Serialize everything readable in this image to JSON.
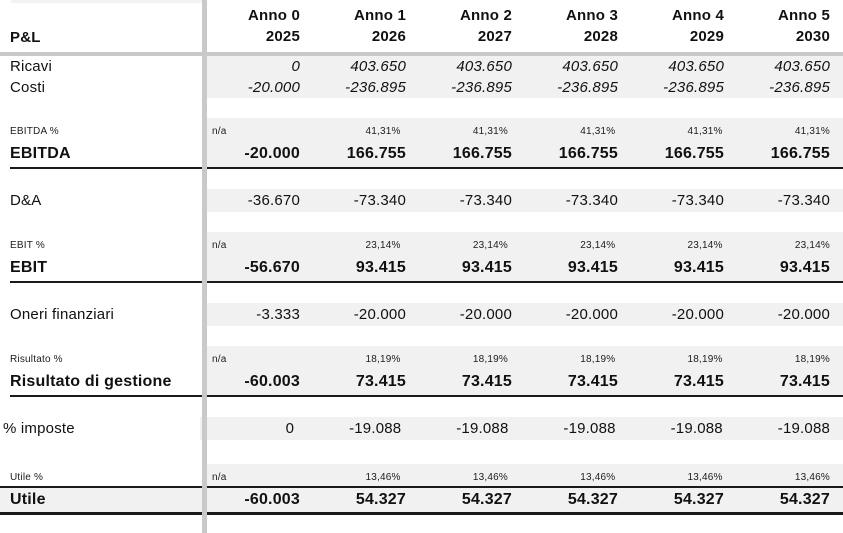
{
  "table": {
    "corner_label": "P&L",
    "columns": [
      {
        "anno": "Anno 0",
        "year": "2025"
      },
      {
        "anno": "Anno 1",
        "year": "2026"
      },
      {
        "anno": "Anno 2",
        "year": "2027"
      },
      {
        "anno": "Anno 3",
        "year": "2028"
      },
      {
        "anno": "Anno 4",
        "year": "2029"
      },
      {
        "anno": "Anno 5",
        "year": "2030"
      }
    ],
    "rows": [
      {
        "label": "Ricavi",
        "style": "italic",
        "values": [
          "0",
          "403.650",
          "403.650",
          "403.650",
          "403.650",
          "403.650"
        ]
      },
      {
        "label": "Costi",
        "style": "italic",
        "values": [
          "-20.000",
          "-236.895",
          "-236.895",
          "-236.895",
          "-236.895",
          "-236.895"
        ]
      },
      {
        "type": "spacer"
      },
      {
        "label": "EBITDA %",
        "style": "percent",
        "values": [
          "n/a",
          "41,31%",
          "41,31%",
          "41,31%",
          "41,31%",
          "41,31%"
        ]
      },
      {
        "label": "EBITDA",
        "style": "total",
        "rule": true,
        "values": [
          "-20.000",
          "166.755",
          "166.755",
          "166.755",
          "166.755",
          "166.755"
        ]
      },
      {
        "type": "spacer"
      },
      {
        "label": "D&A",
        "style": "normal",
        "values": [
          "-36.670",
          "-73.340",
          "-73.340",
          "-73.340",
          "-73.340",
          "-73.340"
        ]
      },
      {
        "type": "spacer"
      },
      {
        "label": "EBIT %",
        "style": "percent",
        "values": [
          "n/a",
          "23,14%",
          "23,14%",
          "23,14%",
          "23,14%",
          "23,14%"
        ]
      },
      {
        "label": "EBIT",
        "style": "total",
        "rule": true,
        "values": [
          "-56.670",
          "93.415",
          "93.415",
          "93.415",
          "93.415",
          "93.415"
        ]
      },
      {
        "type": "spacer"
      },
      {
        "label": "Oneri finanziari",
        "style": "normal",
        "values": [
          "-3.333",
          "-20.000",
          "-20.000",
          "-20.000",
          "-20.000",
          "-20.000"
        ]
      },
      {
        "type": "spacer"
      },
      {
        "label": "Risultato %",
        "style": "percent",
        "values": [
          "n/a",
          "18,19%",
          "18,19%",
          "18,19%",
          "18,19%",
          "18,19%"
        ]
      },
      {
        "label": "Risultato di gestione",
        "style": "total",
        "rule": true,
        "values": [
          "-60.003",
          "73.415",
          "73.415",
          "73.415",
          "73.415",
          "73.415"
        ]
      },
      {
        "type": "spacer"
      },
      {
        "label": "% imposte",
        "style": "normal shift-left",
        "values": [
          "0",
          "-19.088",
          "-19.088",
          "-19.088",
          "-19.088",
          "-19.088"
        ]
      },
      {
        "type": "spacer",
        "style": "tall"
      },
      {
        "label": "Utile %",
        "style": "percent",
        "values": [
          "n/a",
          "13,46%",
          "13,46%",
          "13,46%",
          "13,46%",
          "13,46%"
        ]
      },
      {
        "label": "Utile",
        "style": "grand",
        "values": [
          "-60.003",
          "54.327",
          "54.327",
          "54.327",
          "54.327",
          "54.327"
        ]
      }
    ],
    "colors": {
      "row_band": "#f1f1f1",
      "pane_divider": "#c9c9c9",
      "section_border": "#1a1a1a",
      "text": "#111111"
    }
  }
}
